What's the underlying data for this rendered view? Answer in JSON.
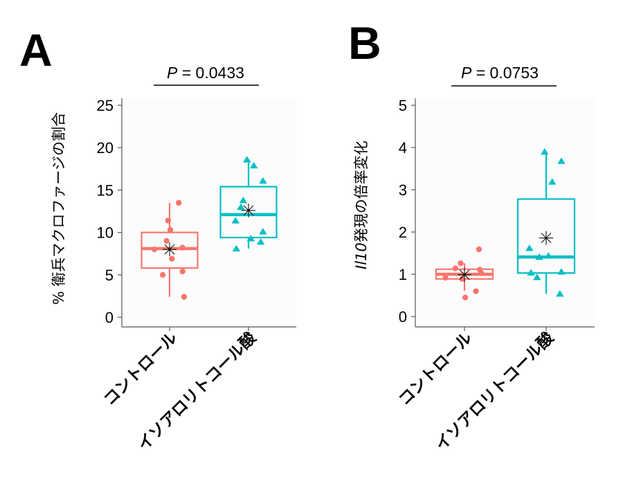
{
  "chart_data": [
    {
      "panel": "A",
      "type": "box",
      "title": "",
      "pvalue_label": "P = 0.0433",
      "pvalue_italic": "P",
      "pvalue_rest": " = 0.0433",
      "ylabel": "% 衛兵マクロファージの割合",
      "xlabel": "",
      "ylim": [
        0,
        25
      ],
      "yticks": [
        0,
        5,
        10,
        15,
        20,
        25
      ],
      "ytick_labels": [
        "0",
        "5",
        "10",
        "15",
        "20",
        "25"
      ],
      "categories": [
        "コントロール",
        "イソアロリトコール酸"
      ],
      "series": [
        {
          "name": "コントロール",
          "color": "#F8766D",
          "marker": "circle",
          "box": {
            "q1": 5.8,
            "median": 8.1,
            "q3": 10.0,
            "whisker_low": 2.4,
            "whisker_high": 13.5,
            "mean": 8.0
          },
          "points": [
            13.5,
            11.4,
            10.3,
            9.0,
            8.0,
            8.2,
            6.9,
            5.0,
            5.4,
            2.4
          ],
          "jitter": [
            0.12,
            -0.02,
            0.01,
            -0.04,
            -0.2,
            0.17,
            0.03,
            -0.09,
            0.17,
            0.19
          ]
        },
        {
          "name": "イソアロリトコール酸",
          "color": "#00BFC4",
          "marker": "triangle",
          "box": {
            "q1": 9.4,
            "median": 12.1,
            "q3": 15.4,
            "whisker_low": 8.1,
            "whisker_high": 18.6,
            "mean": 12.6
          },
          "points": [
            18.6,
            17.9,
            16.1,
            13.8,
            13.0,
            11.4,
            10.1,
            9.3,
            8.9,
            8.1
          ],
          "jitter": [
            -0.02,
            0.07,
            0.19,
            -0.07,
            -0.1,
            -0.17,
            0.19,
            0.03,
            0.16,
            -0.16
          ]
        }
      ]
    },
    {
      "panel": "B",
      "type": "box",
      "title": "",
      "pvalue_label": "P = 0.0753",
      "pvalue_italic": "P",
      "pvalue_rest": " = 0.0753",
      "ylabel": "Il10発現の倍率変化",
      "ylabel_italic": "Il10",
      "ylabel_rest": "発現の倍率変化",
      "xlabel": "",
      "ylim": [
        0,
        5
      ],
      "yticks": [
        0,
        1,
        2,
        3,
        4,
        5
      ],
      "ytick_labels": [
        "0",
        "1",
        "2",
        "3",
        "4",
        "5"
      ],
      "categories": [
        "コントロール",
        "イソアロリトコール酸"
      ],
      "series": [
        {
          "name": "コントロール",
          "color": "#F8766D",
          "marker": "circle",
          "box": {
            "q1": 0.89,
            "median": 1.0,
            "q3": 1.12,
            "whisker_low": 0.61,
            "whisker_high": 1.26,
            "mean": 0.99
          },
          "points": [
            1.59,
            1.26,
            1.14,
            1.11,
            1.03,
            0.92,
            0.89,
            0.6,
            0.45
          ],
          "jitter": [
            0.19,
            -0.05,
            -0.12,
            0.2,
            0.22,
            -0.25,
            -0.03,
            0.15,
            0.01
          ]
        },
        {
          "name": "イソアロリトコール酸",
          "color": "#00BFC4",
          "marker": "triangle",
          "box": {
            "q1": 1.03,
            "median": 1.41,
            "q3": 2.78,
            "whisker_low": 0.54,
            "whisker_high": 3.9,
            "mean": 1.86
          },
          "points": [
            3.9,
            3.68,
            3.19,
            1.62,
            1.41,
            1.44,
            1.04,
            0.93,
            1.06,
            0.54
          ],
          "jitter": [
            -0.02,
            0.2,
            0.08,
            -0.22,
            -0.09,
            0.03,
            -0.2,
            -0.12,
            0.2,
            0.18
          ]
        }
      ]
    }
  ]
}
